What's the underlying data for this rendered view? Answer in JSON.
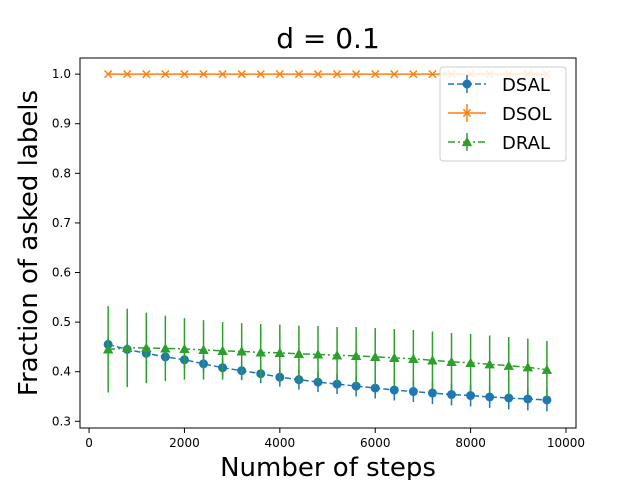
{
  "chart_data": {
    "type": "line",
    "title": "d = 0.1",
    "xlabel": "Number of steps",
    "ylabel": "Fraction of asked labels",
    "xlim": [
      -190,
      10210
    ],
    "ylim": [
      0.2865,
      1.0325
    ],
    "xticks": [
      0,
      2000,
      4000,
      6000,
      8000,
      10000
    ],
    "xtick_labels": [
      "0",
      "2000",
      "4000",
      "6000",
      "8000",
      "10000"
    ],
    "yticks": [
      0.3,
      0.4,
      0.5,
      0.6,
      0.7,
      0.8,
      0.9,
      1.0
    ],
    "ytick_labels": [
      "0.3",
      "0.4",
      "0.5",
      "0.6",
      "0.7",
      "0.8",
      "0.9",
      "1.0"
    ],
    "grid": false,
    "legend_position": "top-right",
    "x": [
      400,
      800,
      1200,
      1600,
      2000,
      2400,
      2800,
      3200,
      3600,
      4000,
      4400,
      4800,
      5200,
      5600,
      6000,
      6400,
      6800,
      7200,
      7600,
      8000,
      8400,
      8800,
      9200,
      9600
    ],
    "series": [
      {
        "name": "DSAL",
        "color": "#1f77b4",
        "linestyle": "dashed",
        "marker": "circle",
        "values": [
          0.455,
          0.445,
          0.437,
          0.43,
          0.424,
          0.416,
          0.408,
          0.402,
          0.396,
          0.389,
          0.384,
          0.379,
          0.375,
          0.371,
          0.367,
          0.363,
          0.36,
          0.357,
          0.354,
          0.352,
          0.349,
          0.347,
          0.345,
          0.343
        ],
        "errors": [
          0.015,
          0.016,
          0.016,
          0.017,
          0.017,
          0.018,
          0.018,
          0.019,
          0.019,
          0.019,
          0.02,
          0.02,
          0.02,
          0.021,
          0.021,
          0.021,
          0.021,
          0.022,
          0.022,
          0.022,
          0.022,
          0.023,
          0.023,
          0.023
        ]
      },
      {
        "name": "DSOL",
        "color": "#ff7f0e",
        "linestyle": "solid",
        "marker": "x",
        "values": [
          1.0,
          1.0,
          1.0,
          1.0,
          1.0,
          1.0,
          1.0,
          1.0,
          1.0,
          1.0,
          1.0,
          1.0,
          1.0,
          1.0,
          1.0,
          1.0,
          1.0,
          1.0,
          1.0,
          1.0,
          1.0,
          1.0,
          1.0,
          1.0
        ],
        "errors": [
          0,
          0,
          0,
          0,
          0,
          0,
          0,
          0,
          0,
          0,
          0,
          0,
          0,
          0,
          0,
          0,
          0,
          0,
          0,
          0,
          0,
          0,
          0,
          0
        ]
      },
      {
        "name": "DRAL",
        "color": "#2ca02c",
        "linestyle": "dashdot",
        "marker": "triangle",
        "values": [
          0.445,
          0.448,
          0.448,
          0.447,
          0.446,
          0.444,
          0.442,
          0.441,
          0.439,
          0.438,
          0.436,
          0.435,
          0.433,
          0.432,
          0.43,
          0.428,
          0.426,
          0.423,
          0.42,
          0.418,
          0.415,
          0.412,
          0.409,
          0.404
        ],
        "errors": [
          0.087,
          0.079,
          0.071,
          0.066,
          0.062,
          0.06,
          0.058,
          0.057,
          0.057,
          0.057,
          0.057,
          0.057,
          0.057,
          0.058,
          0.058,
          0.058,
          0.058,
          0.058,
          0.058,
          0.058,
          0.058,
          0.058,
          0.058,
          0.058
        ]
      }
    ]
  }
}
